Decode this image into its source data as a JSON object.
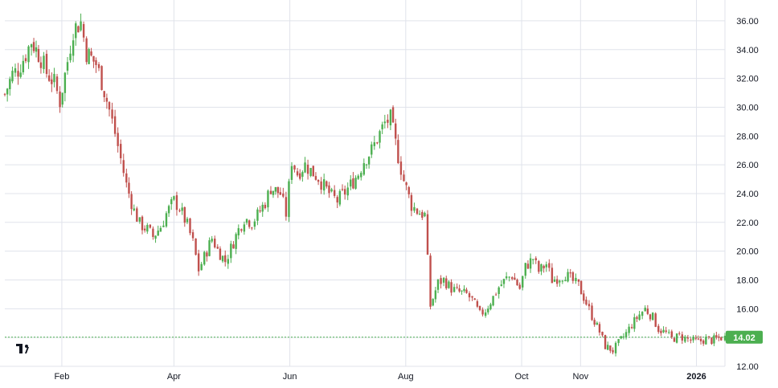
{
  "colors": {
    "background": "#ffffff",
    "grid": "#e0e3eb",
    "axis_text": "#131722",
    "up": "#4caf50",
    "down": "#c0504d",
    "price_line": "#4caf50",
    "price_tag_bg": "#4caf50",
    "logo": "#131722"
  },
  "logo": {
    "icon": "tradingview-logo-icon"
  },
  "chart_data": {
    "type": "candlestick",
    "title": "",
    "xlabel": "",
    "ylabel": "",
    "ylim": [
      12.0,
      37.0
    ],
    "grid": true,
    "y_ticks": [
      12,
      14,
      16,
      18,
      20,
      22,
      24,
      26,
      28,
      30,
      32,
      34,
      36
    ],
    "y_tick_labels": [
      "12.00",
      "14.00",
      "16.00",
      "18.00",
      "20.00",
      "22.00",
      "24.00",
      "26.00",
      "28.00",
      "30.00",
      "32.00",
      "34.00",
      "36.00"
    ],
    "x_ticks": [
      {
        "label": "Feb",
        "date": "2025-02-01",
        "bold": false
      },
      {
        "label": "Apr",
        "date": "2025-04-01",
        "bold": false
      },
      {
        "label": "Jun",
        "date": "2025-06-01",
        "bold": false
      },
      {
        "label": "Aug",
        "date": "2025-08-01",
        "bold": false
      },
      {
        "label": "Oct",
        "date": "2025-10-01",
        "bold": false
      },
      {
        "label": "Nov",
        "date": "2025-11-01",
        "bold": false
      },
      {
        "label": "2026",
        "date": "2026-01-01",
        "bold": true
      }
    ],
    "last_price": 14.02,
    "last_price_label": "14.02",
    "x_start": "2025-01-02",
    "x_end": "2026-01-16",
    "series_close": [
      [
        "2025-01-02",
        30.9
      ],
      [
        "2025-01-06",
        32.3
      ],
      [
        "2025-01-09",
        32.6
      ],
      [
        "2025-01-13",
        33.7
      ],
      [
        "2025-01-16",
        34.6
      ],
      [
        "2025-01-21",
        33.4
      ],
      [
        "2025-01-24",
        32.4
      ],
      [
        "2025-01-28",
        31.7
      ],
      [
        "2025-01-31",
        30.4
      ],
      [
        "2025-02-04",
        33.2
      ],
      [
        "2025-02-07",
        35.4
      ],
      [
        "2025-02-11",
        35.9
      ],
      [
        "2025-02-14",
        33.8
      ],
      [
        "2025-02-19",
        33.0
      ],
      [
        "2025-02-22",
        31.8
      ],
      [
        "2025-02-26",
        29.8
      ],
      [
        "2025-03-01",
        28.2
      ],
      [
        "2025-03-04",
        26.4
      ],
      [
        "2025-03-07",
        24.6
      ],
      [
        "2025-03-11",
        22.8
      ],
      [
        "2025-03-14",
        21.9
      ],
      [
        "2025-03-18",
        21.5
      ],
      [
        "2025-03-21",
        21.0
      ],
      [
        "2025-03-25",
        21.7
      ],
      [
        "2025-03-28",
        22.6
      ],
      [
        "2025-04-01",
        23.5
      ],
      [
        "2025-04-04",
        23.0
      ],
      [
        "2025-04-08",
        21.8
      ],
      [
        "2025-04-11",
        20.6
      ],
      [
        "2025-04-14",
        18.7
      ],
      [
        "2025-04-17",
        19.6
      ],
      [
        "2025-04-21",
        20.9
      ],
      [
        "2025-04-24",
        20.1
      ],
      [
        "2025-04-28",
        19.3
      ],
      [
        "2025-05-01",
        20.2
      ],
      [
        "2025-05-05",
        21.5
      ],
      [
        "2025-05-08",
        22.3
      ],
      [
        "2025-05-12",
        22.0
      ],
      [
        "2025-05-15",
        22.5
      ],
      [
        "2025-05-19",
        23.4
      ],
      [
        "2025-05-22",
        24.4
      ],
      [
        "2025-05-27",
        24.0
      ],
      [
        "2025-05-30",
        22.6
      ],
      [
        "2025-06-02",
        26.3
      ],
      [
        "2025-06-05",
        25.4
      ],
      [
        "2025-06-09",
        26.0
      ],
      [
        "2025-06-12",
        25.6
      ],
      [
        "2025-06-16",
        25.1
      ],
      [
        "2025-06-19",
        24.5
      ],
      [
        "2025-06-23",
        23.8
      ],
      [
        "2025-06-26",
        23.5
      ],
      [
        "2025-06-30",
        24.1
      ],
      [
        "2025-07-03",
        24.6
      ],
      [
        "2025-07-07",
        25.4
      ],
      [
        "2025-07-10",
        26.3
      ],
      [
        "2025-07-14",
        27.0
      ],
      [
        "2025-07-17",
        27.8
      ],
      [
        "2025-07-21",
        28.9
      ],
      [
        "2025-07-24",
        29.2
      ],
      [
        "2025-07-28",
        26.6
      ],
      [
        "2025-07-31",
        24.9
      ],
      [
        "2025-08-04",
        23.2
      ],
      [
        "2025-08-07",
        22.8
      ],
      [
        "2025-08-11",
        22.5
      ],
      [
        "2025-08-14",
        16.2
      ],
      [
        "2025-08-18",
        17.8
      ],
      [
        "2025-08-21",
        18.0
      ],
      [
        "2025-08-25",
        17.4
      ],
      [
        "2025-08-28",
        17.2
      ],
      [
        "2025-09-02",
        17.0
      ],
      [
        "2025-09-05",
        16.6
      ],
      [
        "2025-09-09",
        15.6
      ],
      [
        "2025-09-12",
        15.9
      ],
      [
        "2025-09-16",
        16.8
      ],
      [
        "2025-09-19",
        17.5
      ],
      [
        "2025-09-23",
        18.1
      ],
      [
        "2025-09-26",
        18.3
      ],
      [
        "2025-09-30",
        17.4
      ],
      [
        "2025-10-03",
        18.9
      ],
      [
        "2025-10-07",
        19.5
      ],
      [
        "2025-10-10",
        18.6
      ],
      [
        "2025-10-14",
        19.1
      ],
      [
        "2025-10-17",
        18.0
      ],
      [
        "2025-10-21",
        18.2
      ],
      [
        "2025-10-24",
        18.4
      ],
      [
        "2025-10-28",
        17.9
      ],
      [
        "2025-10-31",
        17.6
      ],
      [
        "2025-11-04",
        16.4
      ],
      [
        "2025-11-07",
        15.5
      ],
      [
        "2025-11-11",
        14.4
      ],
      [
        "2025-11-14",
        13.4
      ],
      [
        "2025-11-18",
        13.1
      ],
      [
        "2025-11-21",
        13.6
      ],
      [
        "2025-11-25",
        14.3
      ],
      [
        "2025-11-28",
        14.9
      ],
      [
        "2025-12-02",
        15.6
      ],
      [
        "2025-12-05",
        16.0
      ],
      [
        "2025-12-09",
        15.4
      ],
      [
        "2025-12-12",
        14.6
      ],
      [
        "2025-12-16",
        14.3
      ],
      [
        "2025-12-19",
        13.9
      ],
      [
        "2025-12-23",
        14.1
      ],
      [
        "2025-12-29",
        13.8
      ],
      [
        "2026-01-02",
        13.7
      ],
      [
        "2026-01-06",
        13.9
      ],
      [
        "2026-01-09",
        13.8
      ],
      [
        "2026-01-14",
        14.0
      ],
      [
        "2026-01-16",
        14.02
      ]
    ]
  }
}
